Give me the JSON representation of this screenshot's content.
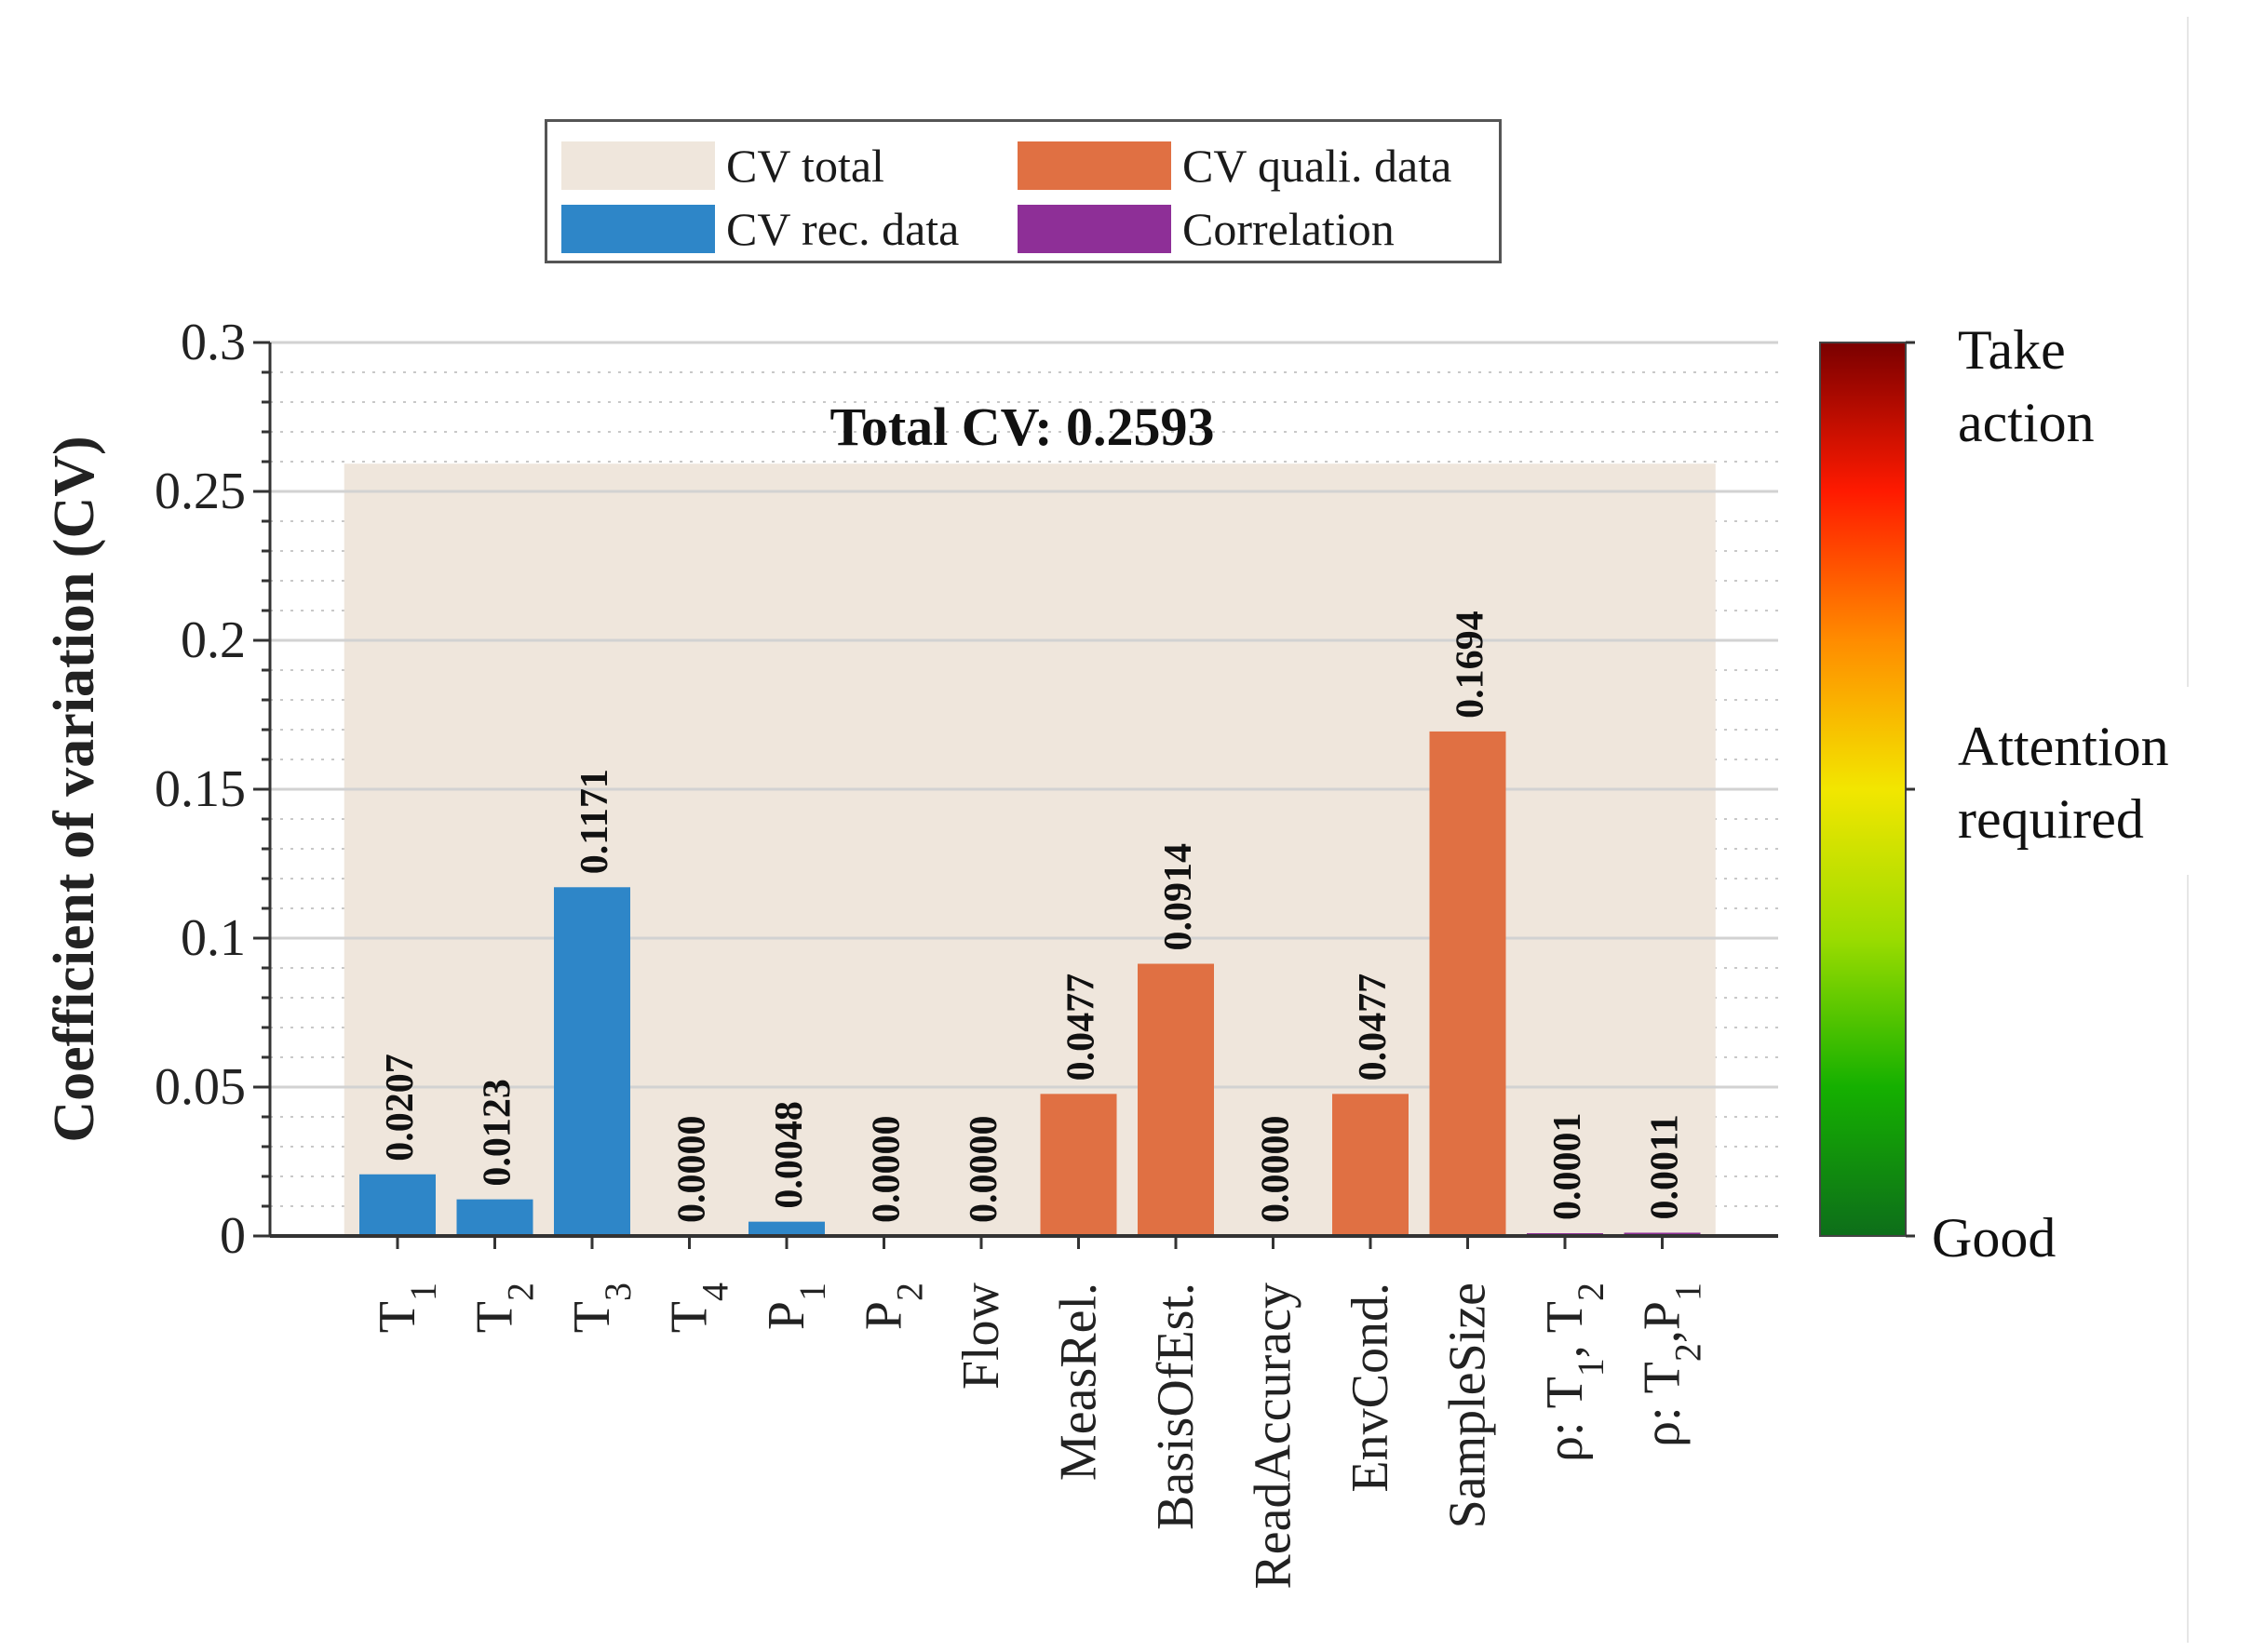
{
  "chart_data": {
    "type": "bar",
    "title": "Total CV: 0.2593",
    "ylabel": "Coefficient of variation (CV)",
    "xlabel": "",
    "ylim": [
      0,
      0.3
    ],
    "yticks": [
      0,
      0.05,
      0.1,
      0.15,
      0.2,
      0.25,
      0.3
    ],
    "ytick_labels": [
      "0",
      "0.05",
      "0.1",
      "0.15",
      "0.2",
      "0.25",
      "0.3"
    ],
    "total_cv": 0.2593,
    "categories": [
      {
        "base": "T",
        "sub": "1",
        "rest": ""
      },
      {
        "base": "T",
        "sub": "2",
        "rest": ""
      },
      {
        "base": "T",
        "sub": "3",
        "rest": ""
      },
      {
        "base": "T",
        "sub": "4",
        "rest": ""
      },
      {
        "base": "P",
        "sub": "1",
        "rest": ""
      },
      {
        "base": "P",
        "sub": "2",
        "rest": ""
      },
      {
        "base": "Flow",
        "sub": "",
        "rest": ""
      },
      {
        "base": "MeasRel.",
        "sub": "",
        "rest": ""
      },
      {
        "base": "BasisOfEst.",
        "sub": "",
        "rest": ""
      },
      {
        "base": "ReadAccuracy",
        "sub": "",
        "rest": ""
      },
      {
        "base": "EnvCond.",
        "sub": "",
        "rest": ""
      },
      {
        "base": "SampleSize",
        "sub": "",
        "rest": ""
      },
      {
        "base": "ρ: T",
        "sub": "1",
        "rest": ", T",
        "sub2": "2"
      },
      {
        "base": "ρ: T",
        "sub": "2",
        "rest": ",P",
        "sub2": "1"
      }
    ],
    "values": [
      0.0207,
      0.0123,
      0.1171,
      0.0,
      0.0048,
      0.0,
      0.0,
      0.0477,
      0.0914,
      0.0,
      0.0477,
      0.1694,
      0.0001,
      0.0011
    ],
    "value_labels": [
      "0.0207",
      "0.0123",
      "0.1171",
      "0.0000",
      "0.0048",
      "0.0000",
      "0.0000",
      "0.0477",
      "0.0914",
      "0.0000",
      "0.0477",
      "0.1694",
      "0.0001",
      "0.0011"
    ],
    "groups": [
      "rec",
      "rec",
      "rec",
      "rec",
      "rec",
      "rec",
      "rec",
      "quali",
      "quali",
      "quali",
      "quali",
      "quali",
      "corr",
      "corr"
    ],
    "colors": {
      "cv_total": "#efe6dc",
      "rec": "#2e86c8",
      "quali": "#e07043",
      "corr": "#8e2f97"
    },
    "legend": [
      {
        "label": "CV total",
        "key": "cv_total"
      },
      {
        "label": "CV quali. data",
        "key": "quali"
      },
      {
        "label": "CV rec. data",
        "key": "rec"
      },
      {
        "label": "Correlation",
        "key": "corr"
      }
    ],
    "colorbar": {
      "colors": [
        "#7a0000",
        "#ff1a00",
        "#ff8c00",
        "#f2e600",
        "#9bdc00",
        "#15b000",
        "#0d6e1a"
      ],
      "labels": [
        "Take action",
        "Attention required",
        "Good"
      ]
    }
  }
}
